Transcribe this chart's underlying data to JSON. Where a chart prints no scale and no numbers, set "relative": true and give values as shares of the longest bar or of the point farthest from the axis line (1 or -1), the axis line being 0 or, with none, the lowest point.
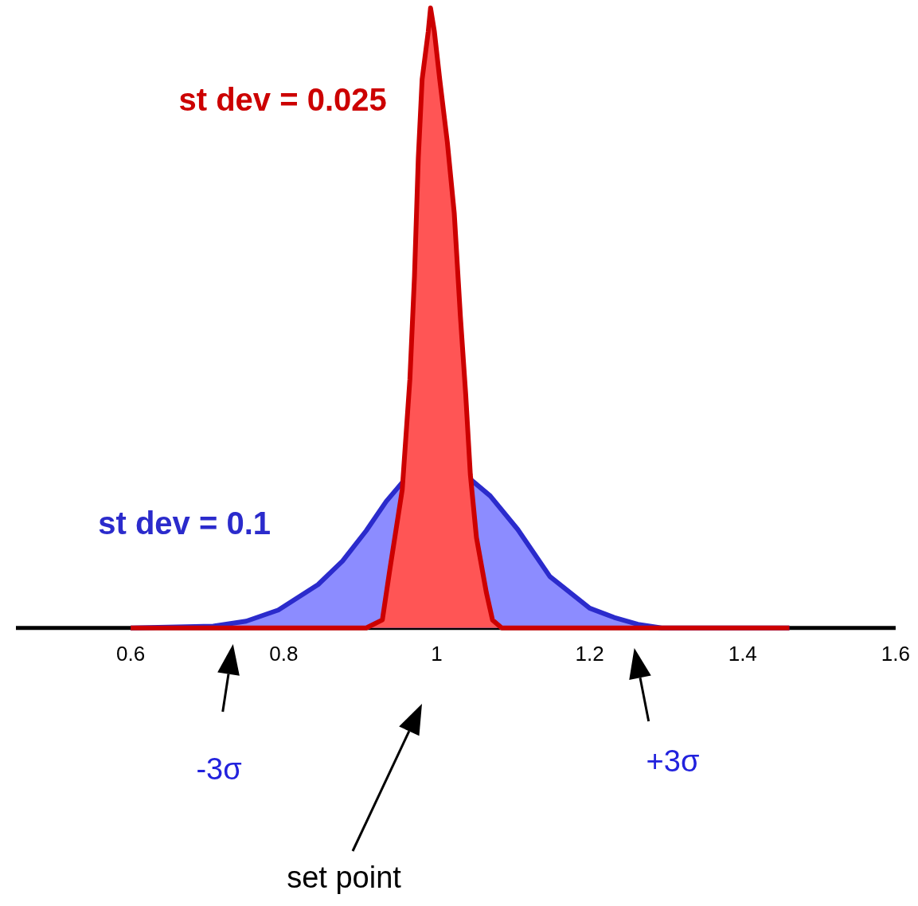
{
  "chart_data": {
    "type": "area",
    "relative": true,
    "xlim": [
      0.45,
      1.6
    ],
    "xticks": [
      0.6,
      0.8,
      1,
      1.2,
      1.4,
      1.6
    ],
    "grid": false,
    "legend": false,
    "marker": "none",
    "series": [
      {
        "name": "st dev = 0.1",
        "color": "#8c8cff",
        "x": [
          0.6,
          0.708,
          0.751,
          0.793,
          0.845,
          0.877,
          0.908,
          0.934,
          0.96,
          0.991,
          1.018,
          1.044,
          1.07,
          1.106,
          1.148,
          1.2,
          1.232,
          1.263,
          1.294,
          1.461
        ],
        "values": [
          0,
          0.003,
          0.011,
          0.029,
          0.07,
          0.108,
          0.157,
          0.204,
          0.242,
          null,
          null,
          0.24,
          0.213,
          0.159,
          0.083,
          0.032,
          0.017,
          0.006,
          0,
          0
        ]
      },
      {
        "name": "st dev = 0.025",
        "color": "#ff5555",
        "x": [
          0.6,
          0.908,
          0.929,
          0.939,
          0.955,
          0.965,
          0.971,
          0.976,
          0.981,
          0.989,
          0.992,
          0.997,
          1.004,
          1.014,
          1.023,
          1.031,
          1.038,
          1.044,
          1.052,
          1.065,
          1.073,
          1.085,
          1.461
        ],
        "values": [
          0,
          0,
          0.013,
          0.096,
          0.223,
          0.401,
          0.567,
          0.758,
          0.885,
          0.962,
          1,
          0.962,
          0.885,
          0.783,
          0.669,
          0.503,
          0.376,
          0.248,
          0.146,
          0.057,
          0.013,
          0,
          0
        ]
      }
    ],
    "annotations": [
      "-3σ",
      "+3σ",
      "set point"
    ]
  }
}
